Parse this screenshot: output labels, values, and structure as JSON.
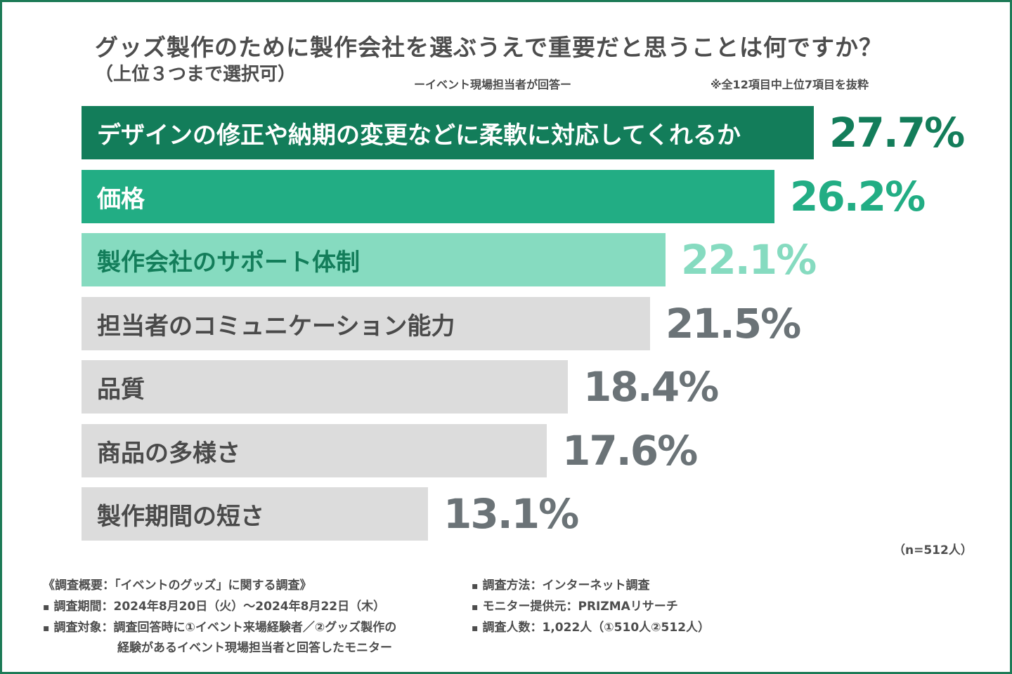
{
  "header": {
    "title": "グッズ製作のために製作会社を選ぶうえで重要だと思うことは何ですか？",
    "subtitle": "（上位３つまで選択可）",
    "respondent": "ーイベント現場担当者が回答ー",
    "note": "※全12項目中上位7項目を抜粋"
  },
  "colors": {
    "frame": "#1c7a56",
    "rank1": "#137d5a",
    "rank2": "#22ad84",
    "rank3": "#86dbc0",
    "other": "#dcdcdc",
    "other_text": "#4a4a4a",
    "value_other": "#6b7377"
  },
  "chart_data": {
    "type": "bar",
    "orientation": "horizontal",
    "categories": [
      "デザインの修正や納期の変更などに柔軟に対応してくれるか",
      "価格",
      "製作会社のサポート体制",
      "担当者のコミュニケーション能力",
      "品質",
      "商品の多様さ",
      "製作期間の短さ"
    ],
    "values": [
      27.7,
      26.2,
      22.1,
      21.5,
      18.4,
      17.6,
      13.1
    ],
    "value_labels": [
      "27.7%",
      "26.2%",
      "22.1%",
      "21.5%",
      "18.4%",
      "17.6%",
      "13.1%"
    ],
    "unit": "%",
    "xlim": [
      0,
      30
    ],
    "title": "グッズ製作のために製作会社を選ぶうえで重要だと思うことは何ですか？"
  },
  "sample_note": "（n=512人）",
  "footer": {
    "left": [
      "《調査概要：「イベントのグッズ」に関する調査》",
      "調査期間：2024年8月20日（火）～2024年8月22日（木）",
      "調査対象：調査回答時に①イベント来場経験者／②グッズ製作の",
      "経験があるイベント現場担当者と回答したモニター"
    ],
    "right": [
      "調査方法：インターネット調査",
      "モニター提供元：PRIZMAリサーチ",
      "調査人数：1,022人（①510人②512人）"
    ]
  }
}
